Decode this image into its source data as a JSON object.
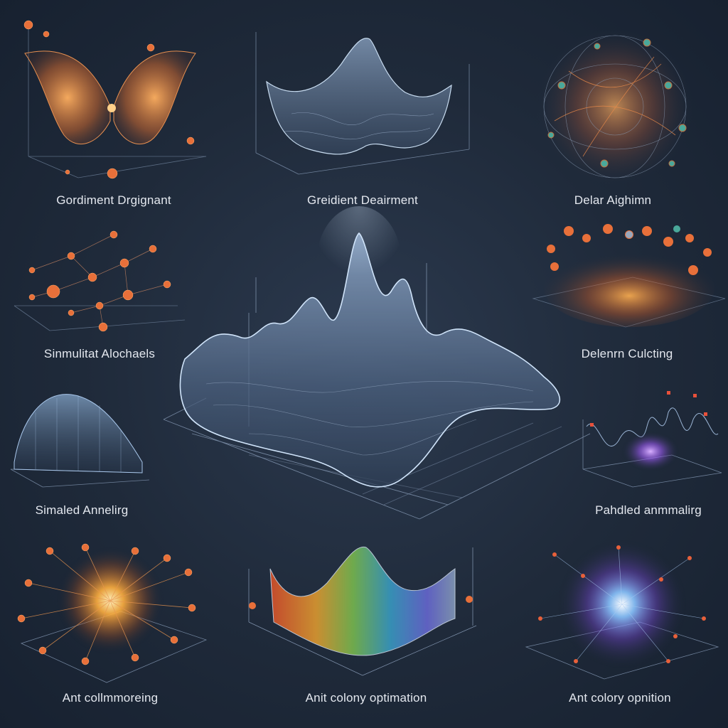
{
  "panels": {
    "top_left": {
      "caption": "Gordiment Drgignant"
    },
    "top_center": {
      "caption": "Greidient Deairment"
    },
    "top_right": {
      "caption": "Delar Aighimn"
    },
    "mid_left": {
      "caption": "Sinmulitat Alochaels"
    },
    "mid_right": {
      "caption": "Delenrn Culcting"
    },
    "lower_left": {
      "caption": "Simaled Annelirg"
    },
    "lower_right": {
      "caption": "Pahdled anmmalirg"
    },
    "bottom_left": {
      "caption": "Ant collmmoreing"
    },
    "bottom_center": {
      "caption": "Anit colony optimation"
    },
    "bottom_right": {
      "caption": "Ant colory opnition"
    }
  },
  "colors": {
    "background": "#1f2a3a",
    "mesh": "#9fb8d6",
    "node_orange": "#e8703a",
    "glow_orange": "#ffb04a",
    "glow_violet": "#a070ff",
    "label": "#e4e8ef"
  }
}
